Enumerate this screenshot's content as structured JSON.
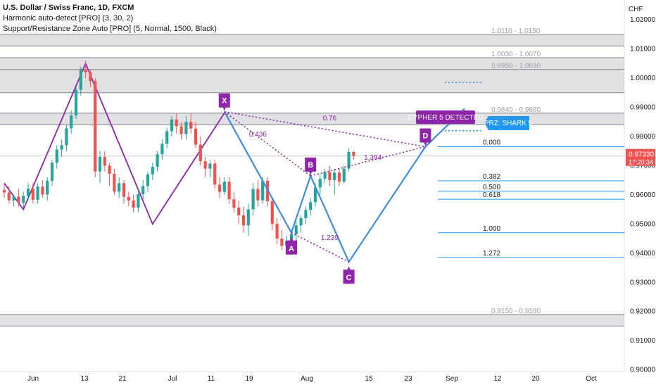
{
  "legend": {
    "title": "U.S. Dollar / Swiss Franc, 1D, FXCM",
    "indicator1": "Harmonic auto-detect [PRO] (3, 30, 2)",
    "indicator2": "Support/Resistance Zone Auto [PRO] (5, Normal, 1500, Black)"
  },
  "colors": {
    "up": "#26a69a",
    "down": "#ef5350",
    "harmonic": "#8e24aa",
    "pattern_blue": "#3d8ee0",
    "fib_blue": "#2196f3",
    "zone_fill": "#c8c9cd",
    "price_tag": "#ef5350",
    "cypher_label": "#8e24aa",
    "prz_label": "#2196f3"
  },
  "chart_data": {
    "type": "candlestick",
    "currency": "CHF",
    "ylim": [
      0.8975,
      1.0275
    ],
    "y_ticks": [
      "0.90000",
      "0.91000",
      "0.92000",
      "0.93000",
      "0.94000",
      "0.95000",
      "0.96000",
      "0.97000",
      "0.98000",
      "0.99000",
      "1.00000",
      "1.01000",
      "1.02000"
    ],
    "x_ticks": [
      "Jun",
      "13",
      "21",
      "Jul",
      "11",
      "19",
      "Aug",
      "15",
      "23",
      "Sep",
      "12",
      "20",
      "Oct"
    ],
    "last_price": "0.97330",
    "countdown": "17:20:34",
    "candles": [
      [
        0.9617,
        0.964,
        0.959,
        0.9608
      ],
      [
        0.9608,
        0.963,
        0.957,
        0.9581
      ],
      [
        0.9581,
        0.96,
        0.956,
        0.9594
      ],
      [
        0.9594,
        0.962,
        0.956,
        0.9573
      ],
      [
        0.9573,
        0.961,
        0.9555,
        0.9596
      ],
      [
        0.9596,
        0.964,
        0.958,
        0.9621
      ],
      [
        0.9621,
        0.964,
        0.957,
        0.9583
      ],
      [
        0.9583,
        0.964,
        0.957,
        0.9628
      ],
      [
        0.9628,
        0.965,
        0.959,
        0.9601
      ],
      [
        0.9601,
        0.966,
        0.958,
        0.9648
      ],
      [
        0.9648,
        0.972,
        0.963,
        0.971
      ],
      [
        0.971,
        0.977,
        0.969,
        0.9755
      ],
      [
        0.9755,
        0.979,
        0.973,
        0.977
      ],
      [
        0.977,
        0.984,
        0.975,
        0.9828
      ],
      [
        0.9828,
        0.989,
        0.981,
        0.9872
      ],
      [
        0.9872,
        0.997,
        0.986,
        0.996
      ],
      [
        0.996,
        1.004,
        0.994,
        1.003
      ],
      [
        1.003,
        1.006,
        1.0,
        1.002
      ],
      [
        1.002,
        1.003,
        0.997,
        0.999
      ],
      [
        0.999,
        1.0,
        0.966,
        0.968
      ],
      [
        0.968,
        0.975,
        0.964,
        0.973
      ],
      [
        0.973,
        0.975,
        0.968,
        0.97
      ],
      [
        0.97,
        0.971,
        0.963,
        0.9672
      ],
      [
        0.9672,
        0.969,
        0.96,
        0.9611
      ],
      [
        0.9611,
        0.966,
        0.959,
        0.964
      ],
      [
        0.964,
        0.965,
        0.957,
        0.9593
      ],
      [
        0.9593,
        0.961,
        0.956,
        0.958
      ],
      [
        0.958,
        0.96,
        0.954,
        0.9556
      ],
      [
        0.9556,
        0.962,
        0.954,
        0.9602
      ],
      [
        0.9602,
        0.965,
        0.958,
        0.963
      ],
      [
        0.963,
        0.968,
        0.961,
        0.967
      ],
      [
        0.967,
        0.971,
        0.965,
        0.9696
      ],
      [
        0.9696,
        0.975,
        0.968,
        0.9739
      ],
      [
        0.9739,
        0.979,
        0.972,
        0.9775
      ],
      [
        0.9775,
        0.983,
        0.976,
        0.9818
      ],
      [
        0.9818,
        0.987,
        0.98,
        0.9858
      ],
      [
        0.9858,
        0.988,
        0.981,
        0.9835
      ],
      [
        0.9835,
        0.985,
        0.979,
        0.9808
      ],
      [
        0.9808,
        0.987,
        0.979,
        0.985
      ],
      [
        0.985,
        0.988,
        0.981,
        0.9827
      ],
      [
        0.9827,
        0.985,
        0.976,
        0.9772
      ],
      [
        0.9772,
        0.98,
        0.97,
        0.9715
      ],
      [
        0.9715,
        0.973,
        0.966,
        0.969
      ],
      [
        0.969,
        0.972,
        0.966,
        0.9707
      ],
      [
        0.9707,
        0.972,
        0.962,
        0.9635
      ],
      [
        0.9635,
        0.966,
        0.959,
        0.961
      ],
      [
        0.961,
        0.966,
        0.96,
        0.9645
      ],
      [
        0.9645,
        0.966,
        0.957,
        0.9585
      ],
      [
        0.9585,
        0.961,
        0.954,
        0.9556
      ],
      [
        0.9556,
        0.958,
        0.95,
        0.953
      ],
      [
        0.953,
        0.956,
        0.947,
        0.9495
      ],
      [
        0.9495,
        0.957,
        0.946,
        0.955
      ],
      [
        0.955,
        0.964,
        0.953,
        0.962
      ],
      [
        0.962,
        0.965,
        0.956,
        0.9581
      ],
      [
        0.9581,
        0.966,
        0.957,
        0.9648
      ],
      [
        0.9648,
        0.966,
        0.956,
        0.9578
      ],
      [
        0.9578,
        0.959,
        0.948,
        0.95
      ],
      [
        0.95,
        0.952,
        0.943,
        0.945
      ],
      [
        0.945,
        0.948,
        0.941,
        0.9425
      ],
      [
        0.9425,
        0.946,
        0.94,
        0.944
      ],
      [
        0.944,
        0.948,
        0.94,
        0.9465
      ],
      [
        0.9465,
        0.951,
        0.944,
        0.9495
      ],
      [
        0.9495,
        0.953,
        0.947,
        0.952
      ],
      [
        0.952,
        0.956,
        0.95,
        0.9548
      ],
      [
        0.9548,
        0.959,
        0.953,
        0.9575
      ],
      [
        0.9575,
        0.964,
        0.956,
        0.9625
      ],
      [
        0.9625,
        0.967,
        0.96,
        0.9655
      ],
      [
        0.9655,
        0.969,
        0.964,
        0.9678
      ],
      [
        0.9678,
        0.97,
        0.963,
        0.965
      ],
      [
        0.965,
        0.969,
        0.96,
        0.9676
      ],
      [
        0.9676,
        0.969,
        0.963,
        0.9645
      ],
      [
        0.9645,
        0.97,
        0.964,
        0.969
      ],
      [
        0.969,
        0.976,
        0.968,
        0.9747
      ],
      [
        0.9747,
        0.975,
        0.972,
        0.9733
      ]
    ],
    "sr_zones": [
      {
        "label": "1.0110 - 1.0150",
        "low": 1.011,
        "high": 1.015
      },
      {
        "label": "1.0030 - 1.0070",
        "low": 1.003,
        "high": 1.007
      },
      {
        "label": "0.9950 - 1.0030",
        "low": 0.995,
        "high": 1.003
      },
      {
        "label": "0.9840 - 0.9880",
        "low": 0.984,
        "high": 0.988
      },
      {
        "label": "0.9150 - 0.9190",
        "low": 0.915,
        "high": 0.919
      }
    ],
    "fib_levels": [
      {
        "label": "0.000",
        "value": 0.9765
      },
      {
        "label": "0.382",
        "value": 0.9648
      },
      {
        "label": "0.500",
        "value": 0.9612
      },
      {
        "label": "0.618",
        "value": 0.9585
      },
      {
        "label": "1.000",
        "value": 0.947
      },
      {
        "label": "1.272",
        "value": 0.9385
      }
    ],
    "prz_dotted_levels": [
      0.9985,
      0.982
    ],
    "prev_pattern_path": [
      [
        0,
        0.964
      ],
      [
        4,
        0.955
      ],
      [
        17,
        1.005
      ],
      [
        31,
        0.95
      ],
      [
        46,
        0.988
      ]
    ],
    "cypher": {
      "points": [
        {
          "label": "X",
          "i": 46,
          "price": 0.9885
        },
        {
          "label": "A",
          "i": 60,
          "price": 0.947
        },
        {
          "label": "B",
          "i": 64,
          "price": 0.9665
        },
        {
          "label": "C",
          "i": 72,
          "price": 0.937
        },
        {
          "label": "D",
          "i": 88,
          "price": 0.9765
        }
      ],
      "ratios": [
        {
          "label": "0.436",
          "i": 53,
          "price": 0.98
        },
        {
          "label": "1.239",
          "i": 68,
          "price": 0.9445
        },
        {
          "label": "1.394",
          "i": 77,
          "price": 0.972
        },
        {
          "label": "0.76",
          "i": 68,
          "price": 0.9855
        }
      ],
      "banner": "CYPHER 5 DETECTED",
      "prz_label": "PRZ: SHARK 5"
    }
  }
}
